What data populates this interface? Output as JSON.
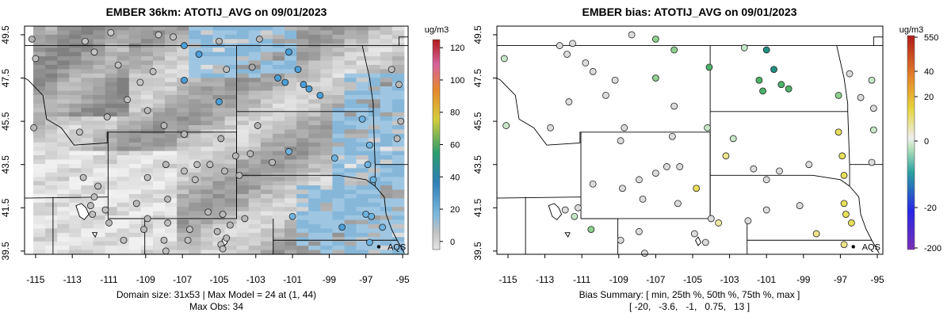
{
  "chart_data": [
    {
      "type": "heatmap",
      "title": "EMBER 36km: ATOTIJ_AVG on 09/01/2023",
      "colorbar_label": "ug/m3",
      "colorbar_ticks": [
        "0",
        "20",
        "40",
        "60",
        "80",
        "100",
        "120"
      ],
      "colorbar_range": [
        -5,
        125
      ],
      "x_ticks": [
        "-115",
        "-113",
        "-111",
        "-109",
        "-107",
        "-105",
        "-103",
        "-101",
        "-99",
        "-97",
        "-95"
      ],
      "y_ticks": [
        "39.5",
        "41.5",
        "43.5",
        "45.5",
        "47.5",
        "49.5"
      ],
      "xlim": [
        -115.6,
        -94.7
      ],
      "ylim": [
        39.35,
        49.9
      ],
      "grid_cols": 31,
      "grid_rows": 53,
      "max_model": 24,
      "max_obs": 34,
      "site_label": "AQS",
      "site_lon": -96.3,
      "site_lat": 39.7,
      "footer_lines": [
        "Domain size: 31x53 | Max Model = 24 at (1, 44)",
        "Max Obs: 34"
      ],
      "observations": [
        {
          "lon": -115.2,
          "lat": 49.3,
          "value": 6
        },
        {
          "lon": -115.0,
          "lat": 48.4,
          "value": 4
        },
        {
          "lon": -115.1,
          "lat": 45.2,
          "value": 5
        },
        {
          "lon": -112.3,
          "lat": 49.2,
          "value": 3
        },
        {
          "lon": -111.8,
          "lat": 48.7,
          "value": 3
        },
        {
          "lon": -110.9,
          "lat": 49.6,
          "value": 2
        },
        {
          "lon": -110.5,
          "lat": 48.1,
          "value": 4
        },
        {
          "lon": -109.3,
          "lat": 47.3,
          "value": 3
        },
        {
          "lon": -108.6,
          "lat": 47.8,
          "value": 4
        },
        {
          "lon": -108.3,
          "lat": 49.5,
          "value": 3
        },
        {
          "lon": -107.5,
          "lat": 49.4,
          "value": 4
        },
        {
          "lon": -106.9,
          "lat": 49.0,
          "value": 28
        },
        {
          "lon": -106.1,
          "lat": 48.6,
          "value": 25
        },
        {
          "lon": -106.9,
          "lat": 47.4,
          "value": 30
        },
        {
          "lon": -105.0,
          "lat": 49.2,
          "value": 5
        },
        {
          "lon": -104.6,
          "lat": 47.9,
          "value": 4
        },
        {
          "lon": -105.0,
          "lat": 46.4,
          "value": 26
        },
        {
          "lon": -103.2,
          "lat": 48.0,
          "value": 8
        },
        {
          "lon": -102.8,
          "lat": 49.3,
          "value": 6
        },
        {
          "lon": -101.2,
          "lat": 48.7,
          "value": 34
        },
        {
          "lon": -101.8,
          "lat": 47.5,
          "value": 30
        },
        {
          "lon": -101.4,
          "lat": 47.3,
          "value": 31
        },
        {
          "lon": -100.7,
          "lat": 47.9,
          "value": 29
        },
        {
          "lon": -100.4,
          "lat": 47.2,
          "value": 28
        },
        {
          "lon": -100.1,
          "lat": 47.0,
          "value": 27
        },
        {
          "lon": -99.5,
          "lat": 46.7,
          "value": 26
        },
        {
          "lon": -108.9,
          "lat": 46.0,
          "value": 5
        },
        {
          "lon": -110.0,
          "lat": 46.5,
          "value": 4
        },
        {
          "lon": -112.6,
          "lat": 45.0,
          "value": 4
        },
        {
          "lon": -111.1,
          "lat": 45.7,
          "value": 5
        },
        {
          "lon": -108.0,
          "lat": 45.3,
          "value": 5
        },
        {
          "lon": -106.9,
          "lat": 44.9,
          "value": 5
        },
        {
          "lon": -104.9,
          "lat": 44.7,
          "value": 6
        },
        {
          "lon": -103.3,
          "lat": 44.0,
          "value": 5
        },
        {
          "lon": -102.9,
          "lat": 45.3,
          "value": 6
        },
        {
          "lon": -101.2,
          "lat": 44.1,
          "value": 20
        },
        {
          "lon": -97.2,
          "lat": 45.6,
          "value": 22
        },
        {
          "lon": -96.8,
          "lat": 44.4,
          "value": 22
        },
        {
          "lon": -95.3,
          "lat": 44.7,
          "value": 5
        },
        {
          "lon": -95.1,
          "lat": 45.5,
          "value": 5
        },
        {
          "lon": -95.6,
          "lat": 47.9,
          "value": 4
        },
        {
          "lon": -95.2,
          "lat": 47.2,
          "value": 5
        },
        {
          "lon": -106.2,
          "lat": 43.5,
          "value": 4
        },
        {
          "lon": -106.9,
          "lat": 43.2,
          "value": 4
        },
        {
          "lon": -105.5,
          "lat": 43.5,
          "value": 4
        },
        {
          "lon": -104.1,
          "lat": 43.9,
          "value": 5
        },
        {
          "lon": -103.9,
          "lat": 43.0,
          "value": 5
        },
        {
          "lon": -104.7,
          "lat": 43.2,
          "value": 5
        },
        {
          "lon": -102.1,
          "lat": 43.6,
          "value": 5
        },
        {
          "lon": -98.7,
          "lat": 43.8,
          "value": 20
        },
        {
          "lon": -96.9,
          "lat": 43.5,
          "value": 22
        },
        {
          "lon": -96.6,
          "lat": 42.8,
          "value": 22
        },
        {
          "lon": -107.9,
          "lat": 43.5,
          "value": 5
        },
        {
          "lon": -108.9,
          "lat": 42.9,
          "value": 4
        },
        {
          "lon": -107.8,
          "lat": 41.9,
          "value": 5
        },
        {
          "lon": -106.3,
          "lat": 42.8,
          "value": 4
        },
        {
          "lon": -104.8,
          "lat": 41.2,
          "value": 5
        },
        {
          "lon": -104.4,
          "lat": 40.7,
          "value": 5
        },
        {
          "lon": -103.6,
          "lat": 41.0,
          "value": 5
        },
        {
          "lon": -111.6,
          "lat": 42.5,
          "value": 4
        },
        {
          "lon": -112.4,
          "lat": 42.9,
          "value": 4
        },
        {
          "lon": -111.8,
          "lat": 42.0,
          "value": 4
        },
        {
          "lon": -111.2,
          "lat": 41.4,
          "value": 4
        },
        {
          "lon": -111.9,
          "lat": 41.2,
          "value": 4
        },
        {
          "lon": -112.0,
          "lat": 41.6,
          "value": 4
        },
        {
          "lon": -111.0,
          "lat": 40.8,
          "value": 5
        },
        {
          "lon": -110.2,
          "lat": 40.0,
          "value": 4
        },
        {
          "lon": -109.1,
          "lat": 40.5,
          "value": 5
        },
        {
          "lon": -107.8,
          "lat": 40.8,
          "value": 4
        },
        {
          "lon": -106.7,
          "lat": 40.0,
          "value": 4
        },
        {
          "lon": -105.1,
          "lat": 40.4,
          "value": 5
        },
        {
          "lon": -104.9,
          "lat": 39.8,
          "value": 4
        },
        {
          "lon": -104.8,
          "lat": 39.6,
          "value": 4
        },
        {
          "lon": -104.6,
          "lat": 40.1,
          "value": 5
        },
        {
          "lon": -107.9,
          "lat": 39.5,
          "value": 4
        },
        {
          "lon": -109.5,
          "lat": 41.7,
          "value": 5
        },
        {
          "lon": -108.9,
          "lat": 41.0,
          "value": 5
        },
        {
          "lon": -105.6,
          "lat": 41.3,
          "value": 5
        },
        {
          "lon": -101.0,
          "lat": 41.1,
          "value": 20
        },
        {
          "lon": -98.3,
          "lat": 40.6,
          "value": 26
        },
        {
          "lon": -97.0,
          "lat": 41.2,
          "value": 22
        },
        {
          "lon": -96.7,
          "lat": 41.1,
          "value": 22
        },
        {
          "lon": -96.1,
          "lat": 40.6,
          "value": 20
        },
        {
          "lon": -96.8,
          "lat": 39.9,
          "value": 22
        },
        {
          "lon": -106.6,
          "lat": 40.5,
          "value": 4
        },
        {
          "lon": -108.0,
          "lat": 40.0,
          "value": 4
        }
      ]
    },
    {
      "type": "scatter",
      "title": "EMBER bias: ATOTIJ_AVG on 09/01/2023",
      "colorbar_label": "ug/m3",
      "colorbar_ticks": [
        "-200",
        "-20",
        "0",
        "20",
        "40",
        "550"
      ],
      "x_ticks": [
        "-115",
        "-113",
        "-111",
        "-109",
        "-107",
        "-105",
        "-103",
        "-101",
        "-99",
        "-97",
        "-95"
      ],
      "y_ticks": [
        "39.5",
        "41.5",
        "43.5",
        "45.5",
        "47.5",
        "49.5"
      ],
      "xlim": [
        -115.6,
        -94.7
      ],
      "ylim": [
        39.35,
        49.9
      ],
      "site_label": "AQS",
      "site_lon": -96.3,
      "site_lat": 39.7,
      "summary_lines": [
        "Bias Summary: [ min, 25th %, 50th %, 75th %, max ]",
        "[ -20,   -3.6,   -1,   0.75,   13 ]"
      ],
      "bias_summary": {
        "min": -20,
        "p25": -3.6,
        "p50": -1,
        "p75": 0.75,
        "max": 13
      },
      "observations": [
        {
          "lon": -115.2,
          "lat": 48.4,
          "bias": -3
        },
        {
          "lon": -115.1,
          "lat": 45.3,
          "bias": -4
        },
        {
          "lon": -112.2,
          "lat": 49.0,
          "bias": 0
        },
        {
          "lon": -111.8,
          "lat": 48.6,
          "bias": 0
        },
        {
          "lon": -111.5,
          "lat": 49.1,
          "bias": 0
        },
        {
          "lon": -110.8,
          "lat": 48.2,
          "bias": 2
        },
        {
          "lon": -110.4,
          "lat": 47.8,
          "bias": 0
        },
        {
          "lon": -109.2,
          "lat": 47.4,
          "bias": 0
        },
        {
          "lon": -108.3,
          "lat": 49.5,
          "bias": 0
        },
        {
          "lon": -107.0,
          "lat": 49.3,
          "bias": -8
        },
        {
          "lon": -106.0,
          "lat": 48.8,
          "bias": -9
        },
        {
          "lon": -107.0,
          "lat": 47.5,
          "bias": -6
        },
        {
          "lon": -104.1,
          "lat": 48.0,
          "bias": -10
        },
        {
          "lon": -101.4,
          "lat": 47.4,
          "bias": -12
        },
        {
          "lon": -101.0,
          "lat": 48.8,
          "bias": -20
        },
        {
          "lon": -100.6,
          "lat": 47.9,
          "bias": -15
        },
        {
          "lon": -100.2,
          "lat": 47.2,
          "bias": -12
        },
        {
          "lon": -99.8,
          "lat": 47.0,
          "bias": -12
        },
        {
          "lon": -101.2,
          "lat": 46.9,
          "bias": -10
        },
        {
          "lon": -102.2,
          "lat": 48.9,
          "bias": -2
        },
        {
          "lon": -96.5,
          "lat": 47.7,
          "bias": 0
        },
        {
          "lon": -95.3,
          "lat": 47.4,
          "bias": -2
        },
        {
          "lon": -97.1,
          "lat": 46.7,
          "bias": -8
        },
        {
          "lon": -95.9,
          "lat": 46.6,
          "bias": 0
        },
        {
          "lon": -95.2,
          "lat": 46.1,
          "bias": 0
        },
        {
          "lon": -95.2,
          "lat": 45.1,
          "bias": -2
        },
        {
          "lon": -109.7,
          "lat": 46.7,
          "bias": 0
        },
        {
          "lon": -111.7,
          "lat": 46.4,
          "bias": 0
        },
        {
          "lon": -112.7,
          "lat": 45.2,
          "bias": 0
        },
        {
          "lon": -106.0,
          "lat": 46.2,
          "bias": 0
        },
        {
          "lon": -104.2,
          "lat": 45.2,
          "bias": -4
        },
        {
          "lon": -102.8,
          "lat": 44.7,
          "bias": -4
        },
        {
          "lon": -103.2,
          "lat": 43.9,
          "bias": 8
        },
        {
          "lon": -98.7,
          "lat": 43.5,
          "bias": 0
        },
        {
          "lon": -97.1,
          "lat": 45.0,
          "bias": 9
        },
        {
          "lon": -96.9,
          "lat": 43.9,
          "bias": 10
        },
        {
          "lon": -96.8,
          "lat": 43.0,
          "bias": 10
        },
        {
          "lon": -95.3,
          "lat": 43.6,
          "bias": 0
        },
        {
          "lon": -108.7,
          "lat": 45.2,
          "bias": 0
        },
        {
          "lon": -108.9,
          "lat": 44.6,
          "bias": 0
        },
        {
          "lon": -106.1,
          "lat": 44.8,
          "bias": 0
        },
        {
          "lon": -105.7,
          "lat": 43.4,
          "bias": 0
        },
        {
          "lon": -104.8,
          "lat": 42.4,
          "bias": 10
        },
        {
          "lon": -101.7,
          "lat": 43.3,
          "bias": 0
        },
        {
          "lon": -101.0,
          "lat": 42.8,
          "bias": 0
        },
        {
          "lon": -100.3,
          "lat": 43.2,
          "bias": 0
        },
        {
          "lon": -106.4,
          "lat": 43.4,
          "bias": 0
        },
        {
          "lon": -107.0,
          "lat": 43.1,
          "bias": 0
        },
        {
          "lon": -105.8,
          "lat": 41.7,
          "bias": 0
        },
        {
          "lon": -104.0,
          "lat": 41.0,
          "bias": 0
        },
        {
          "lon": -103.6,
          "lat": 40.8,
          "bias": 5
        },
        {
          "lon": -107.9,
          "lat": 42.8,
          "bias": 0
        },
        {
          "lon": -107.7,
          "lat": 41.9,
          "bias": 0
        },
        {
          "lon": -108.8,
          "lat": 42.4,
          "bias": 0
        },
        {
          "lon": -110.4,
          "lat": 42.6,
          "bias": 0
        },
        {
          "lon": -111.2,
          "lat": 41.5,
          "bias": 0
        },
        {
          "lon": -111.9,
          "lat": 41.4,
          "bias": 0
        },
        {
          "lon": -111.4,
          "lat": 41.1,
          "bias": -4
        },
        {
          "lon": -110.5,
          "lat": 40.5,
          "bias": -6
        },
        {
          "lon": -108.9,
          "lat": 40.0,
          "bias": 0
        },
        {
          "lon": -107.6,
          "lat": 39.4,
          "bias": 0
        },
        {
          "lon": -104.3,
          "lat": 39.9,
          "bias": 0
        },
        {
          "lon": -104.9,
          "lat": 40.3,
          "bias": 0
        },
        {
          "lon": -107.9,
          "lat": 40.4,
          "bias": 0
        },
        {
          "lon": -98.3,
          "lat": 40.3,
          "bias": 8
        },
        {
          "lon": -96.8,
          "lat": 41.7,
          "bias": 10
        },
        {
          "lon": -96.7,
          "lat": 41.2,
          "bias": 10
        },
        {
          "lon": -96.4,
          "lat": 40.8,
          "bias": 10
        },
        {
          "lon": -96.8,
          "lat": 39.8,
          "bias": 8
        },
        {
          "lon": -101.0,
          "lat": 41.4,
          "bias": 0
        },
        {
          "lon": -102.0,
          "lat": 40.9,
          "bias": 0
        },
        {
          "lon": -99.2,
          "lat": 41.6,
          "bias": 0
        }
      ]
    }
  ]
}
